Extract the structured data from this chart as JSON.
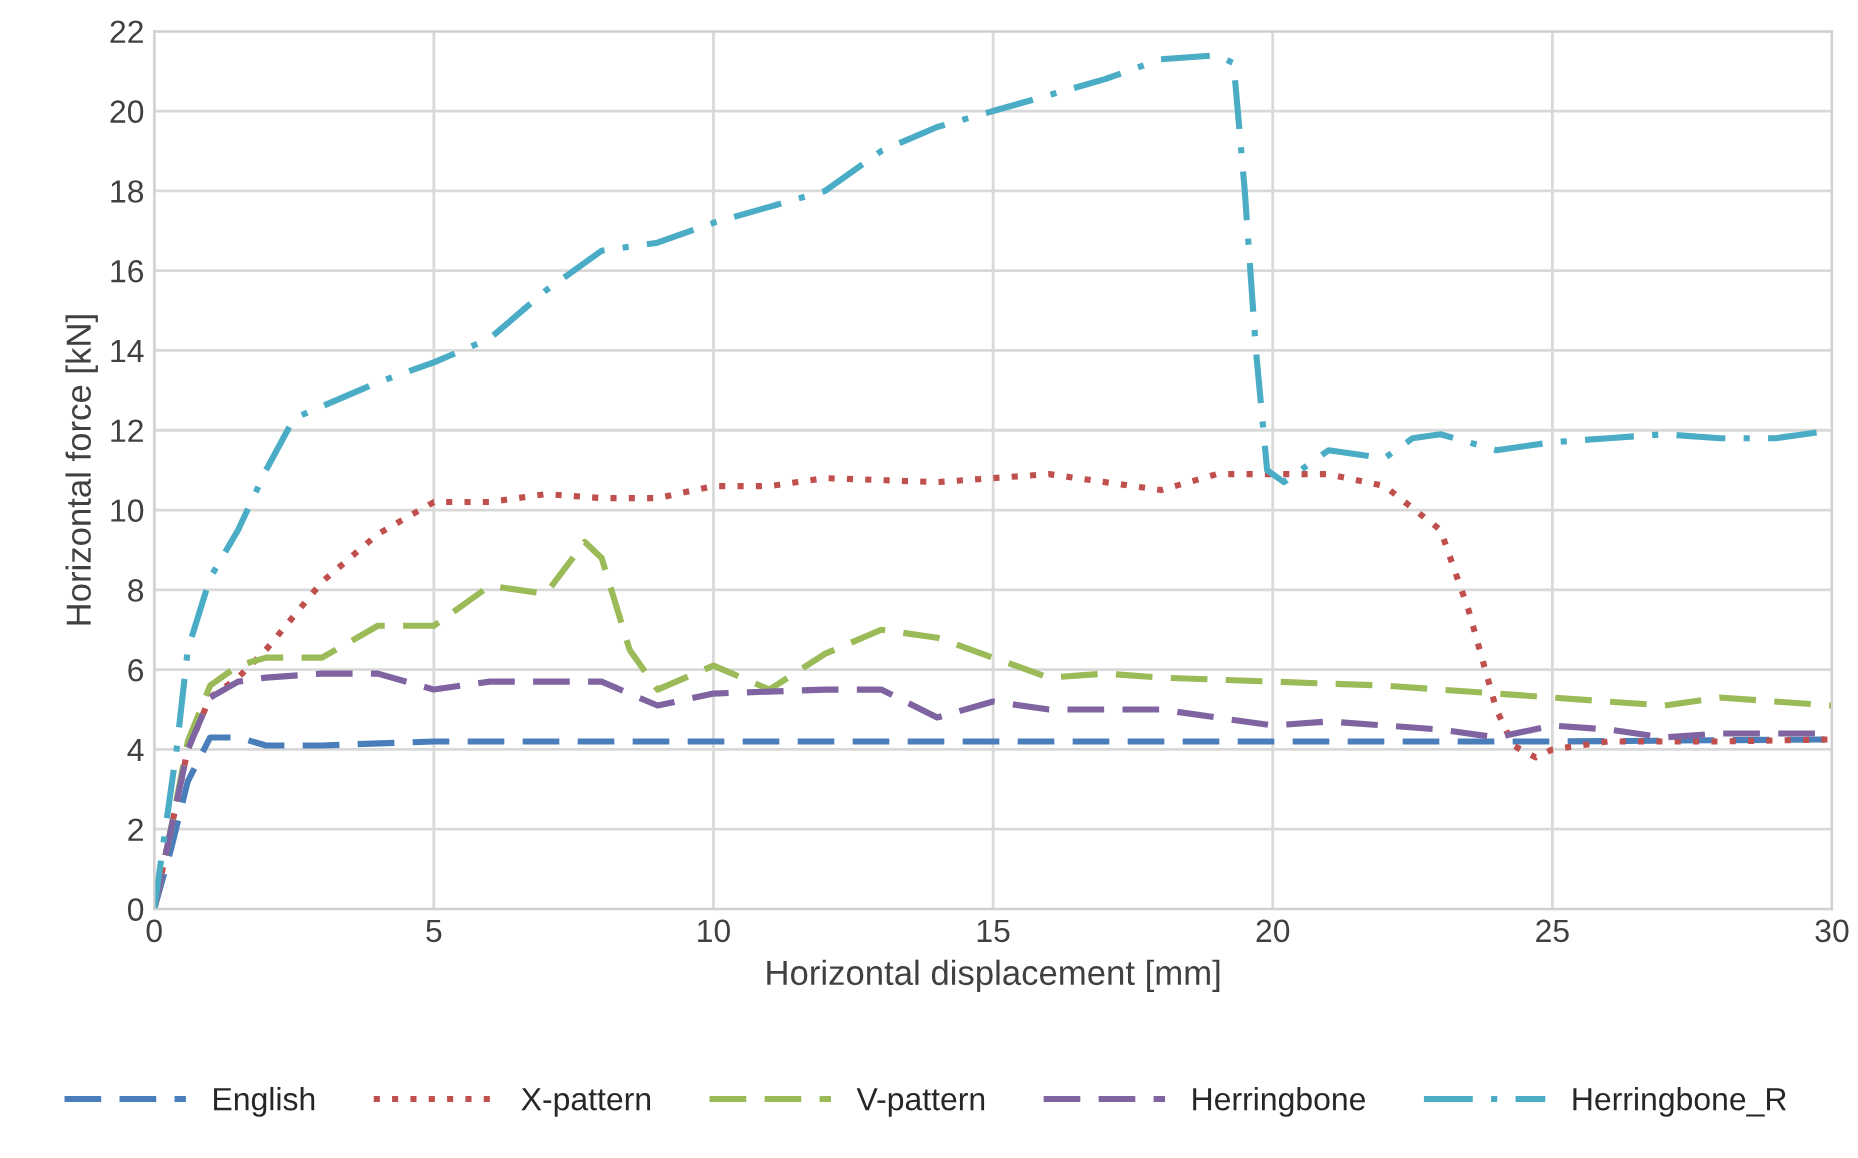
{
  "chart_data": {
    "type": "line",
    "xlabel": "Horizontal displacement [mm]",
    "ylabel": "Horizontal force [kN]",
    "xlim": [
      0,
      30
    ],
    "xticks": [
      0,
      5,
      10,
      15,
      20,
      25,
      30
    ],
    "ylim": [
      0,
      22
    ],
    "yticks": [
      0,
      2,
      4,
      6,
      8,
      10,
      12,
      14,
      16,
      18,
      20,
      22
    ],
    "grid": true,
    "legend": "bottom",
    "marker": "none",
    "series": [
      {
        "name": "English",
        "color": "#4a7ebb",
        "line_style": "dashed",
        "x": [
          0,
          0.3,
          0.6,
          1,
          1.5,
          2,
          3,
          5,
          10,
          15,
          20,
          25,
          30
        ],
        "values": [
          0,
          1.5,
          3.2,
          4.3,
          4.3,
          4.1,
          4.1,
          4.2,
          4.2,
          4.2,
          4.2,
          4.2,
          4.25
        ]
      },
      {
        "name": "X-pattern",
        "color": "#c0504d",
        "line_style": "dotted",
        "x": [
          0,
          0.3,
          0.6,
          1,
          1.5,
          2,
          3,
          4,
          5,
          6,
          7,
          8,
          9,
          10,
          11,
          12,
          14,
          16,
          17,
          18,
          19,
          20,
          21,
          22,
          23,
          23.5,
          24,
          24.3,
          24.7,
          25,
          26,
          28,
          30
        ],
        "values": [
          0,
          2,
          4,
          5.3,
          5.8,
          6.5,
          8.2,
          9.4,
          10.2,
          10.2,
          10.4,
          10.3,
          10.3,
          10.6,
          10.6,
          10.8,
          10.7,
          10.9,
          10.7,
          10.5,
          10.9,
          10.9,
          10.9,
          10.6,
          9.5,
          7.5,
          5.0,
          4.1,
          3.8,
          4.0,
          4.2,
          4.2,
          4.25
        ]
      },
      {
        "name": "V-pattern",
        "color": "#9bbb59",
        "line_style": "dashed",
        "x": [
          0,
          0.3,
          0.6,
          1,
          1.5,
          2,
          3,
          4,
          5,
          6,
          7,
          7.7,
          8,
          8.5,
          9,
          10,
          11,
          12,
          13,
          14,
          15,
          16,
          17,
          18,
          20,
          22,
          24,
          26,
          27,
          28,
          30
        ],
        "values": [
          0,
          2,
          4.2,
          5.6,
          6.1,
          6.3,
          6.3,
          7.1,
          7.1,
          8.1,
          7.9,
          9.2,
          8.8,
          6.5,
          5.5,
          6.1,
          5.5,
          6.4,
          7.0,
          6.8,
          6.3,
          5.8,
          5.9,
          5.8,
          5.7,
          5.6,
          5.4,
          5.2,
          5.1,
          5.3,
          5.1
        ]
      },
      {
        "name": "Herringbone",
        "color": "#8064a2",
        "line_style": "dashed",
        "x": [
          0,
          0.3,
          0.6,
          1,
          1.5,
          2,
          3,
          4,
          5,
          6,
          8,
          9,
          10,
          12,
          13,
          14,
          15,
          16,
          18,
          19,
          20,
          21,
          22,
          23,
          24,
          25,
          26,
          27,
          28,
          30
        ],
        "values": [
          0,
          2,
          4,
          5.3,
          5.7,
          5.8,
          5.9,
          5.9,
          5.5,
          5.7,
          5.7,
          5.1,
          5.4,
          5.5,
          5.5,
          4.8,
          5.2,
          5.0,
          5.0,
          4.8,
          4.6,
          4.7,
          4.6,
          4.5,
          4.3,
          4.6,
          4.5,
          4.3,
          4.4,
          4.4
        ]
      },
      {
        "name": "Herringbone_R",
        "color": "#4bacc6",
        "line_style": "dashdot",
        "x": [
          0,
          0.2,
          0.4,
          0.6,
          1,
          1.5,
          2,
          2.5,
          3,
          4,
          5,
          6,
          7,
          8,
          9,
          10,
          11,
          12,
          13,
          14,
          15,
          16,
          17,
          18,
          19,
          19.3,
          19.5,
          19.7,
          19.9,
          20.2,
          21,
          22,
          22.5,
          23,
          24,
          25,
          26,
          27,
          28,
          29,
          30
        ],
        "values": [
          0,
          2,
          4,
          6.5,
          8.3,
          9.5,
          11,
          12.3,
          12.6,
          13.2,
          13.7,
          14.3,
          15.5,
          16.5,
          16.7,
          17.2,
          17.6,
          18.0,
          19.0,
          19.6,
          20.0,
          20.4,
          20.8,
          21.3,
          21.4,
          21.2,
          18,
          14,
          11,
          10.7,
          11.5,
          11.3,
          11.8,
          11.9,
          11.5,
          11.7,
          11.8,
          11.9,
          11.8,
          11.8,
          12.0
        ]
      }
    ]
  }
}
